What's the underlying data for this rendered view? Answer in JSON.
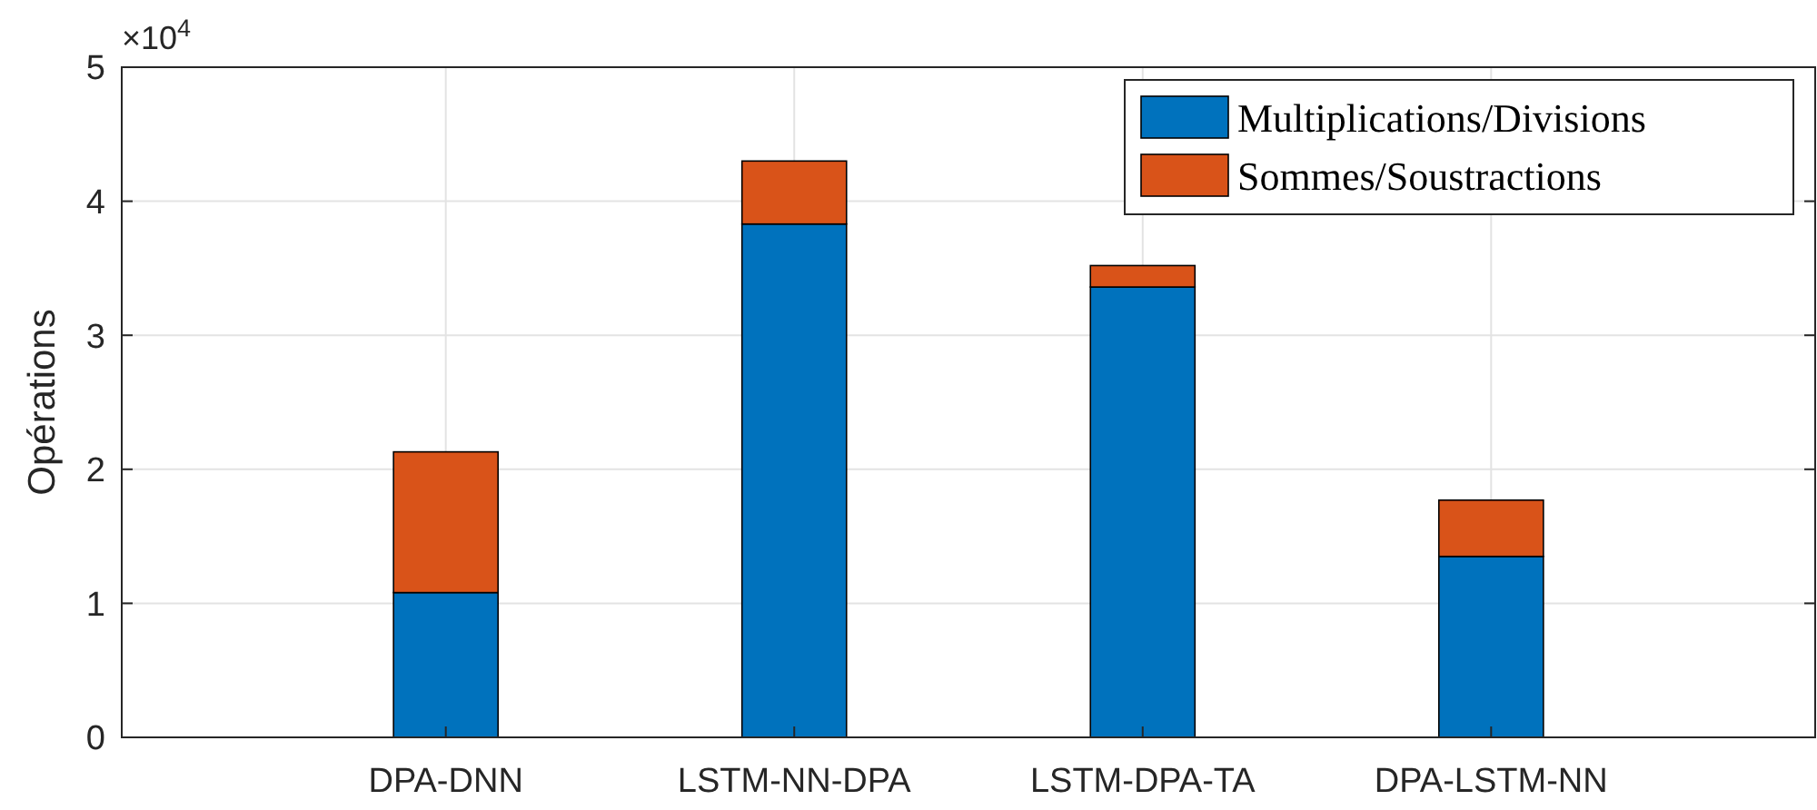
{
  "chart_data": {
    "type": "bar",
    "stacked": true,
    "categories": [
      "DPA-DNN",
      "LSTM-NN-DPA",
      "LSTM-DPA-TA",
      "DPA-LSTM-NN"
    ],
    "series": [
      {
        "name": "Multiplications/Divisions",
        "color": "#0072bd",
        "values": [
          1.08,
          3.83,
          3.36,
          1.35
        ]
      },
      {
        "name": "Sommes/Soustractions",
        "color": "#d95319",
        "values": [
          1.05,
          0.47,
          0.16,
          0.42
        ]
      }
    ],
    "ylabel": "Opérations",
    "ylim": [
      0,
      5
    ],
    "yticks": [
      0,
      1,
      2,
      3,
      4,
      5
    ],
    "annotations": [
      "×10$^{4}$"
    ],
    "grid": true,
    "legend": "top right"
  }
}
